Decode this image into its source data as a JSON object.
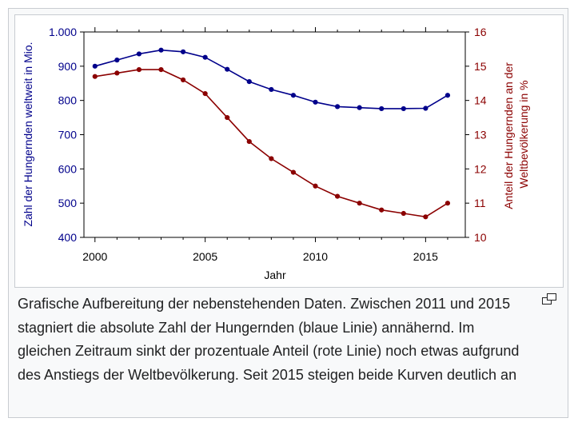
{
  "chart_data": {
    "type": "line",
    "xlabel": "Jahr",
    "ylabel_left": "Zahl der Hungernden weltweit in Mio.",
    "ylabel_right": [
      "Anteil der Hungernden an der",
      "Weltbevölkerung in %"
    ],
    "xlim": [
      1999.5,
      2016.8
    ],
    "x_ticks": [
      2000,
      2005,
      2010,
      2015
    ],
    "ylim_left": [
      400,
      1000
    ],
    "y_ticks_left": [
      "400",
      "500",
      "600",
      "700",
      "800",
      "900",
      "1.000"
    ],
    "ylim_right": [
      10,
      16
    ],
    "y_ticks_right": [
      "10",
      "11",
      "12",
      "13",
      "14",
      "15",
      "16"
    ],
    "grid": false,
    "series": [
      {
        "axis": "left",
        "color": "#00008b",
        "x": [
          2000,
          2001,
          2002,
          2003,
          2004,
          2005,
          2006,
          2007,
          2008,
          2009,
          2010,
          2011,
          2012,
          2013,
          2014,
          2015,
          2016
        ],
        "values": [
          900,
          918,
          936,
          947,
          942,
          926,
          891,
          855,
          832,
          815,
          795,
          782,
          779,
          776,
          776,
          777,
          815
        ]
      },
      {
        "axis": "right",
        "color": "#8b0000",
        "x": [
          2000,
          2001,
          2002,
          2003,
          2004,
          2005,
          2006,
          2007,
          2008,
          2009,
          2010,
          2011,
          2012,
          2013,
          2014,
          2015,
          2016
        ],
        "values": [
          14.7,
          14.8,
          14.9,
          14.9,
          14.6,
          14.2,
          13.5,
          12.8,
          12.3,
          11.9,
          11.5,
          11.2,
          11.0,
          10.8,
          10.7,
          10.6,
          11.0
        ]
      }
    ]
  },
  "caption": "Grafische Aufbereitung der nebenstehenden Daten. Zwischen 2011 und 2015 stagniert die absolute Zahl der Hungernden (blaue Linie) annähernd. Im gleichen Zeitraum sinkt der prozentuale Anteil (rote Linie) noch etwas aufgrund des Anstiegs der Weltbevölkerung. Seit 2015 steigen beide Kurven deutlich an",
  "enlarge_icon": "magnify-clip-icon"
}
